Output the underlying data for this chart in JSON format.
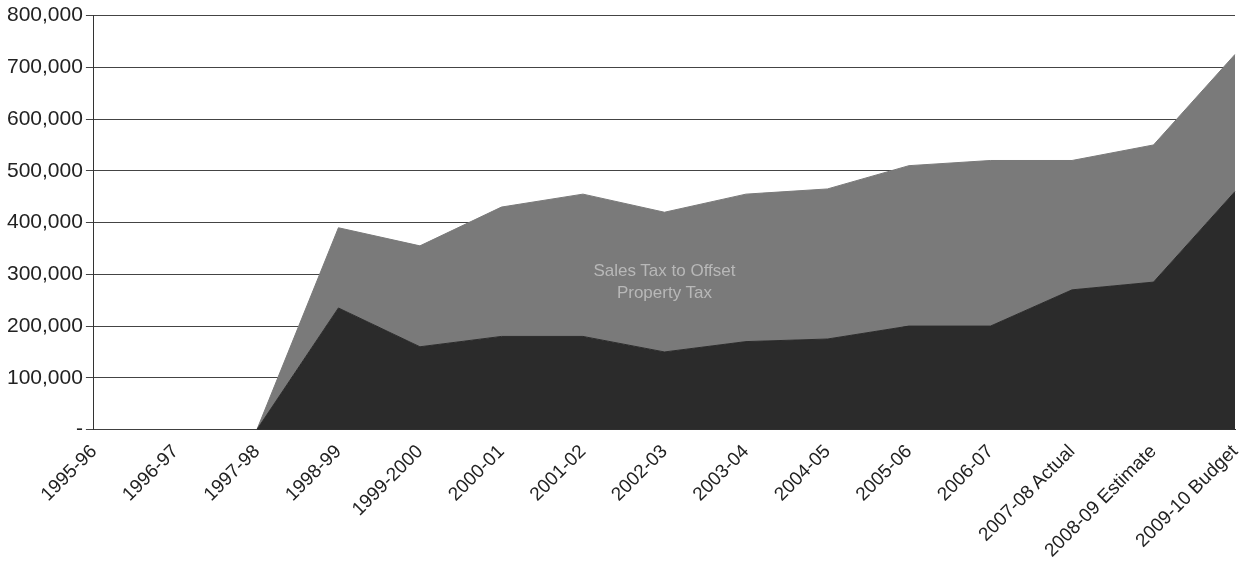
{
  "chart_data": {
    "type": "area",
    "stacked": true,
    "categories": [
      "1995-96",
      "1996-97",
      "1997-98",
      "1998-99",
      "1999-2000",
      "2000-01",
      "2001-02",
      "2002-03",
      "2003-04",
      "2004-05",
      "2005-06",
      "2006-07",
      "2007-08 Actual",
      "2008-09 Estimate",
      "2009-10 Budget"
    ],
    "series": [
      {
        "color": "#2b2b2b",
        "values": [
          0,
          0,
          0,
          235000,
          160000,
          180000,
          180000,
          150000,
          170000,
          175000,
          200000,
          200000,
          270000,
          285000,
          460000
        ]
      },
      {
        "name": "Sales Tax to Offset Property Tax",
        "color": "#7a7a7a",
        "values": [
          0,
          0,
          0,
          155000,
          195000,
          250000,
          275000,
          270000,
          285000,
          290000,
          310000,
          320000,
          250000,
          265000,
          265000
        ]
      }
    ],
    "ylim": [
      0,
      800000
    ],
    "yticks": [
      {
        "value": 0,
        "label": "-"
      },
      {
        "value": 100000,
        "label": "100,000"
      },
      {
        "value": 200000,
        "label": "200,000"
      },
      {
        "value": 300000,
        "label": "300,000"
      },
      {
        "value": 400000,
        "label": "400,000"
      },
      {
        "value": 500000,
        "label": "500,000"
      },
      {
        "value": 600000,
        "label": "600,000"
      },
      {
        "value": 700000,
        "label": "700,000"
      },
      {
        "value": 800000,
        "label": "800,000"
      }
    ],
    "grid": "y",
    "legend": false,
    "marker": "none"
  }
}
